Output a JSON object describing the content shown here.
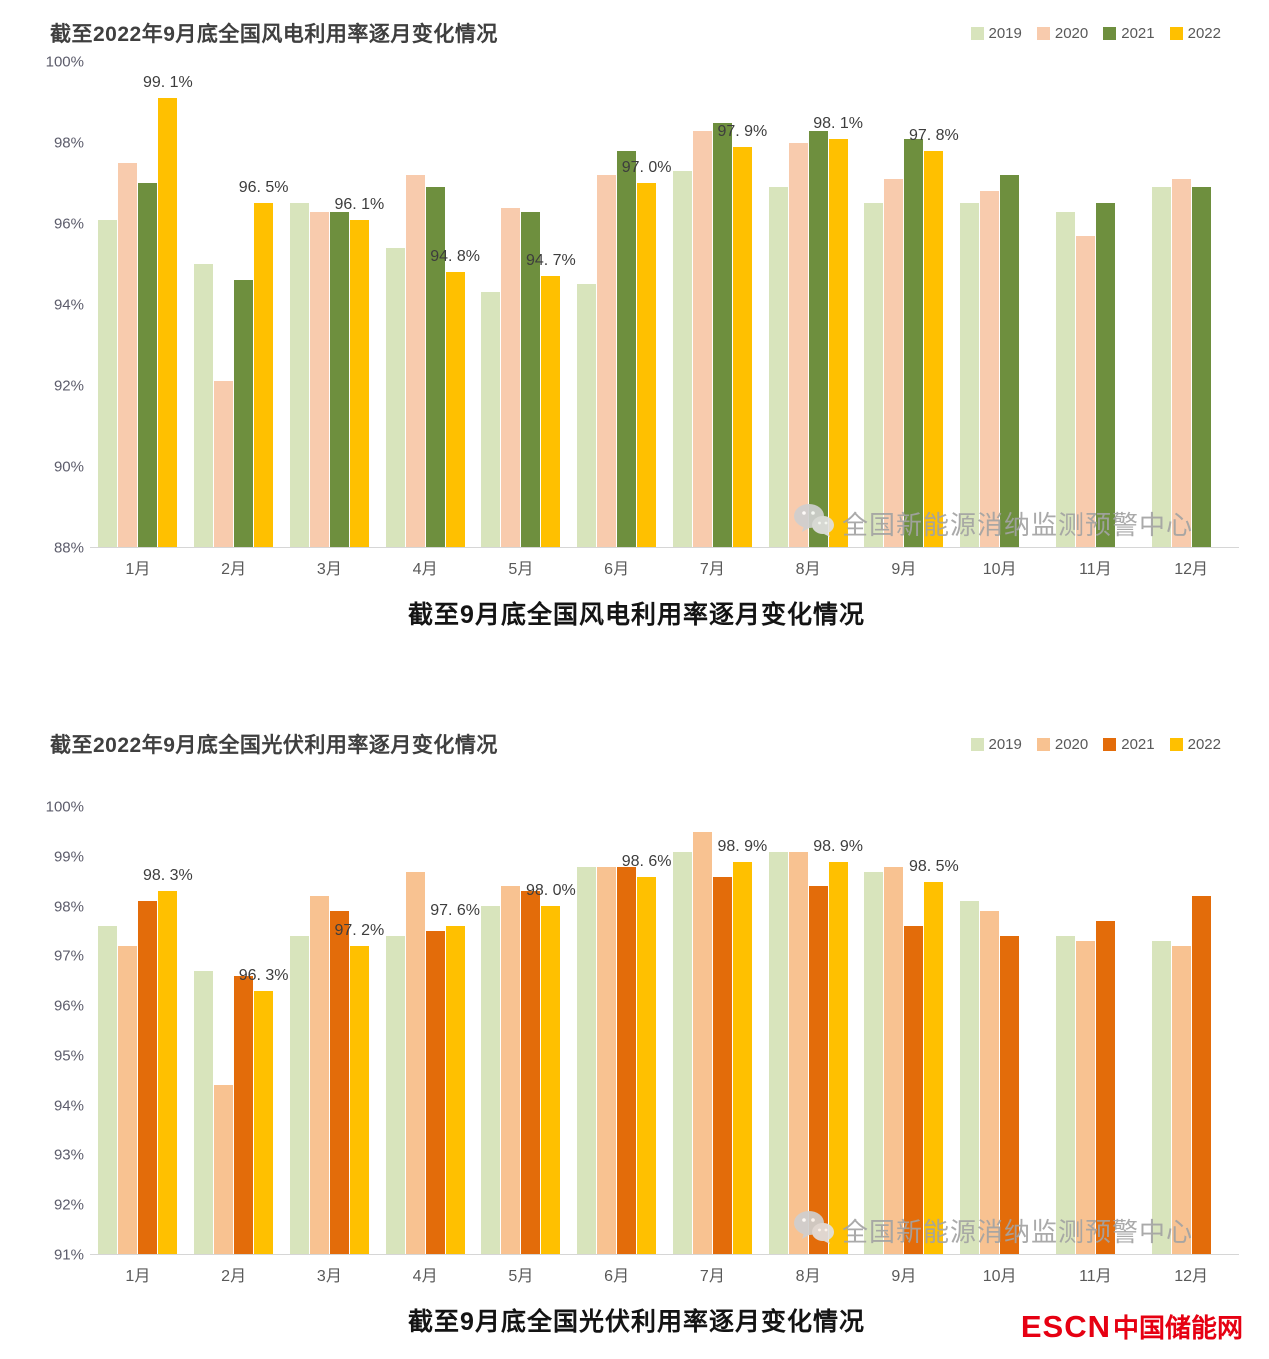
{
  "chart_data": [
    {
      "type": "bar",
      "title": "截至2022年9月底全国风电利用率逐月变化情况",
      "caption": "截至9月底全国风电利用率逐月变化情况",
      "watermark": "全国新能源消纳监测预警中心",
      "categories": [
        "1月",
        "2月",
        "3月",
        "4月",
        "5月",
        "6月",
        "7月",
        "8月",
        "9月",
        "10月",
        "11月",
        "12月"
      ],
      "series": [
        {
          "name": "2019",
          "color": "#d8e4bc",
          "values": [
            96.1,
            95.0,
            96.5,
            95.4,
            94.3,
            94.5,
            97.3,
            96.9,
            96.5,
            96.5,
            96.3,
            96.9
          ]
        },
        {
          "name": "2020",
          "color": "#f8cbad",
          "values": [
            97.5,
            92.1,
            96.3,
            97.2,
            96.4,
            97.2,
            98.3,
            98.0,
            97.1,
            96.8,
            95.7,
            97.1
          ]
        },
        {
          "name": "2021",
          "color": "#6e8f3e",
          "values": [
            97.0,
            94.6,
            96.3,
            96.9,
            96.3,
            97.8,
            98.5,
            98.3,
            98.1,
            97.2,
            96.5,
            96.9
          ]
        },
        {
          "name": "2022",
          "color": "#ffc000",
          "values": [
            99.1,
            96.5,
            96.1,
            94.8,
            94.7,
            97.0,
            97.9,
            98.1,
            97.8,
            null,
            null,
            null
          ]
        }
      ],
      "data_labels": {
        "series": "2022",
        "values": [
          "99. 1%",
          "96. 5%",
          "96. 1%",
          "94. 8%",
          "94. 7%",
          "97. 0%",
          "97. 9%",
          "98. 1%",
          "97. 8%",
          "",
          "",
          ""
        ]
      },
      "ylim": [
        88,
        100
      ],
      "yticks": [
        {
          "v": 88,
          "label": "88%"
        },
        {
          "v": 90,
          "label": "90%"
        },
        {
          "v": 92,
          "label": "92%"
        },
        {
          "v": 94,
          "label": "94%"
        },
        {
          "v": 96,
          "label": "96%"
        },
        {
          "v": 98,
          "label": "98%"
        },
        {
          "v": 100,
          "label": "100%"
        }
      ],
      "grid": false,
      "legend_position": "top-right"
    },
    {
      "type": "bar",
      "title": "截至2022年9月底全国光伏利用率逐月变化情况",
      "caption": "截至9月底全国光伏利用率逐月变化情况",
      "watermark": "全国新能源消纳监测预警中心",
      "categories": [
        "1月",
        "2月",
        "3月",
        "4月",
        "5月",
        "6月",
        "7月",
        "8月",
        "9月",
        "10月",
        "11月",
        "12月"
      ],
      "series": [
        {
          "name": "2019",
          "color": "#d8e4bc",
          "values": [
            97.6,
            96.7,
            97.4,
            97.4,
            98.0,
            98.8,
            99.1,
            99.1,
            98.7,
            98.1,
            97.4,
            97.3
          ]
        },
        {
          "name": "2020",
          "color": "#f8c291",
          "values": [
            97.2,
            94.4,
            98.2,
            98.7,
            98.4,
            98.8,
            99.5,
            99.1,
            98.8,
            97.9,
            97.3,
            97.2
          ]
        },
        {
          "name": "2021",
          "color": "#e36c0a",
          "values": [
            98.1,
            96.6,
            97.9,
            97.5,
            98.3,
            98.8,
            98.6,
            98.4,
            97.6,
            97.4,
            97.7,
            98.2
          ]
        },
        {
          "name": "2022",
          "color": "#ffc000",
          "values": [
            98.3,
            96.3,
            97.2,
            97.6,
            98.0,
            98.6,
            98.9,
            98.9,
            98.5,
            null,
            null,
            null
          ]
        }
      ],
      "data_labels": {
        "series": "2022",
        "values": [
          "98. 3%",
          "96. 3%",
          "97. 2%",
          "97. 6%",
          "98. 0%",
          "98. 6%",
          "98. 9%",
          "98. 9%",
          "98. 5%",
          "",
          "",
          ""
        ]
      },
      "ylim": [
        91,
        100
      ],
      "yticks": [
        {
          "v": 91,
          "label": "91%"
        },
        {
          "v": 92,
          "label": "92%"
        },
        {
          "v": 93,
          "label": "93%"
        },
        {
          "v": 94,
          "label": "94%"
        },
        {
          "v": 95,
          "label": "95%"
        },
        {
          "v": 96,
          "label": "96%"
        },
        {
          "v": 97,
          "label": "97%"
        },
        {
          "v": 98,
          "label": "98%"
        },
        {
          "v": 99,
          "label": "99%"
        },
        {
          "v": 100,
          "label": "100%"
        }
      ],
      "grid": false,
      "legend_position": "top-right"
    }
  ],
  "footer_logo": {
    "brand": "ESCN",
    "site": "中国储能网",
    "color": "#e60012"
  }
}
